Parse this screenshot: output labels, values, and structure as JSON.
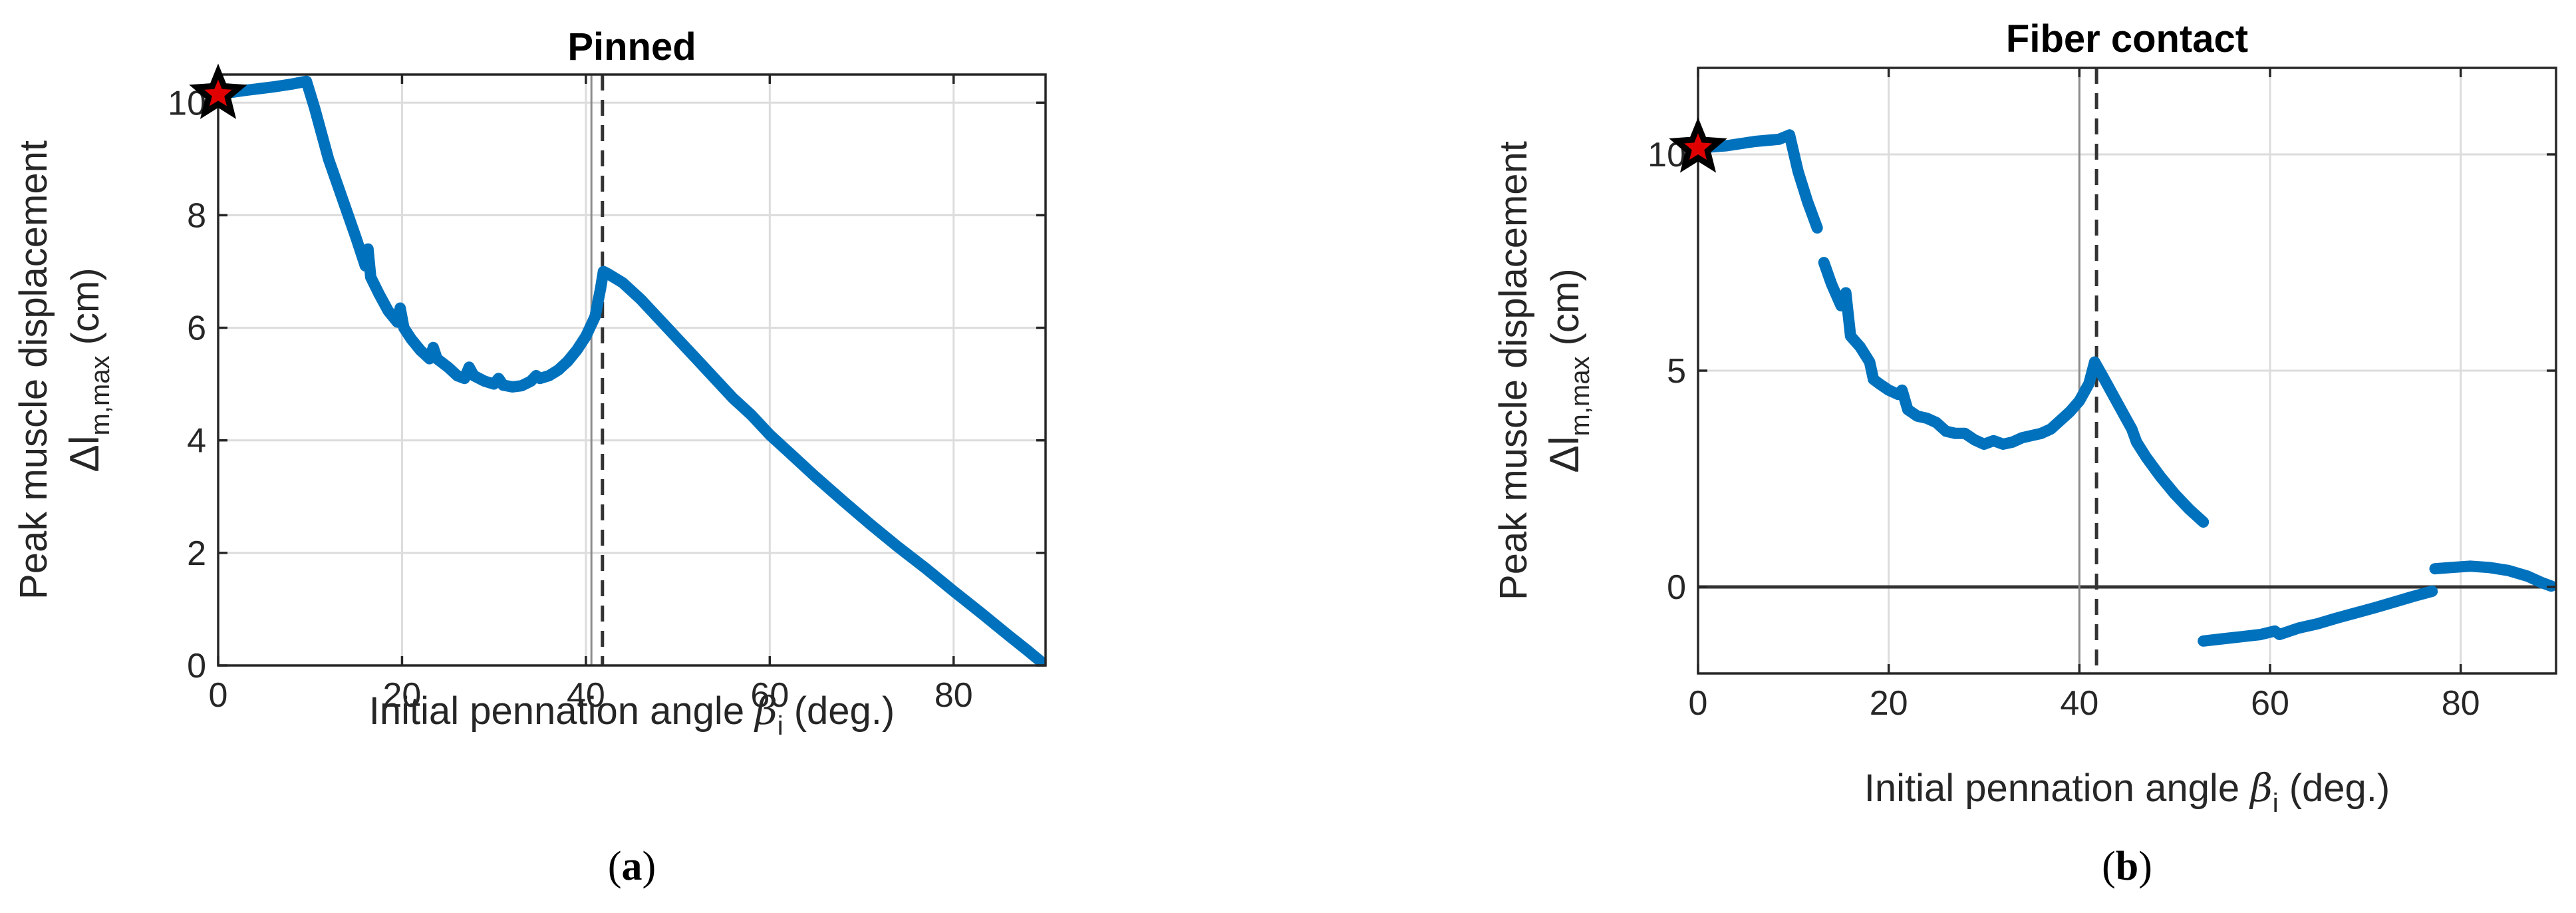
{
  "chart_data": [
    {
      "type": "line",
      "title": "Pinned",
      "panel_label": "(a)",
      "xlabel": "Initial pennation angle",
      "xlabel_symbol": "β",
      "xlabel_subscript": "i",
      "xlabel_unit": "(deg.)",
      "ylabel_line1": "Peak muscle displacement",
      "ylabel_symbol": "Δl",
      "ylabel_subscript": "m,max",
      "ylabel_unit": "(cm)",
      "xlim": [
        0,
        90
      ],
      "ylim": [
        0,
        10.5
      ],
      "xticks": [
        0,
        20,
        40,
        60,
        80
      ],
      "yticks": [
        0,
        2,
        4,
        6,
        8,
        10
      ],
      "grid": true,
      "reference_lines": [
        {
          "x": 40.6,
          "style": "solid"
        },
        {
          "x": 41.8,
          "style": "dashed"
        }
      ],
      "marker": {
        "x": 0,
        "y": 10.15,
        "shape": "star",
        "color": "#E00000"
      },
      "series_color": "#0072BD",
      "segments": [
        [
          [
            0,
            10.15
          ],
          [
            3,
            10.22
          ],
          [
            6,
            10.28
          ],
          [
            8,
            10.33
          ],
          [
            9.6,
            10.38
          ],
          [
            10.5,
            9.9
          ],
          [
            12,
            9.0
          ],
          [
            13.5,
            8.3
          ],
          [
            15,
            7.6
          ],
          [
            16,
            7.1
          ],
          [
            16.3,
            7.4
          ],
          [
            16.6,
            6.9
          ],
          [
            17.5,
            6.6
          ],
          [
            18.5,
            6.3
          ],
          [
            19.5,
            6.1
          ],
          [
            19.8,
            6.35
          ],
          [
            20.2,
            6.0
          ],
          [
            21,
            5.8
          ],
          [
            22,
            5.6
          ],
          [
            23,
            5.45
          ],
          [
            23.4,
            5.65
          ],
          [
            23.8,
            5.45
          ],
          [
            25,
            5.3
          ],
          [
            26,
            5.15
          ],
          [
            26.8,
            5.1
          ],
          [
            27.3,
            5.3
          ],
          [
            27.8,
            5.15
          ],
          [
            29,
            5.05
          ],
          [
            30,
            5.0
          ],
          [
            30.5,
            5.1
          ],
          [
            31,
            4.98
          ],
          [
            32,
            4.95
          ],
          [
            33,
            4.97
          ],
          [
            34,
            5.05
          ],
          [
            34.6,
            5.15
          ],
          [
            35,
            5.1
          ],
          [
            36,
            5.15
          ],
          [
            37,
            5.25
          ],
          [
            38,
            5.4
          ],
          [
            39,
            5.6
          ],
          [
            40,
            5.85
          ],
          [
            41,
            6.2
          ],
          [
            41.6,
            6.7
          ],
          [
            41.9,
            7.0
          ],
          [
            42.5,
            6.95
          ],
          [
            44,
            6.8
          ],
          [
            46,
            6.5
          ],
          [
            48,
            6.15
          ],
          [
            50,
            5.8
          ],
          [
            52,
            5.45
          ],
          [
            54,
            5.1
          ],
          [
            56,
            4.75
          ],
          [
            58,
            4.45
          ],
          [
            60,
            4.1
          ],
          [
            62,
            3.8
          ],
          [
            65,
            3.35
          ],
          [
            68,
            2.92
          ],
          [
            71,
            2.5
          ],
          [
            74,
            2.1
          ],
          [
            77,
            1.72
          ],
          [
            80,
            1.32
          ],
          [
            83,
            0.93
          ],
          [
            86,
            0.53
          ],
          [
            88,
            0.27
          ],
          [
            90,
            0.0
          ]
        ]
      ]
    },
    {
      "type": "line",
      "title": "Fiber contact",
      "panel_label": "(b)",
      "xlabel": "Initial pennation angle",
      "xlabel_symbol": "β",
      "xlabel_subscript": "i",
      "xlabel_unit": "(deg.)",
      "ylabel_line1": "Peak muscle displacement",
      "ylabel_symbol": "Δl",
      "ylabel_subscript": "m,max",
      "ylabel_unit": "(cm)",
      "xlim": [
        0,
        90
      ],
      "ylim": [
        -2,
        12
      ],
      "xticks": [
        0,
        20,
        40,
        60,
        80
      ],
      "yticks": [
        0,
        5,
        10
      ],
      "grid": true,
      "reference_lines": [
        {
          "x": 40.0,
          "style": "solid"
        },
        {
          "x": 41.8,
          "style": "dashed"
        }
      ],
      "zero_line": true,
      "marker": {
        "x": 0,
        "y": 10.15,
        "shape": "star",
        "color": "#E00000"
      },
      "series_color": "#0072BD",
      "segments": [
        [
          [
            0,
            10.15
          ],
          [
            3,
            10.2
          ],
          [
            6,
            10.3
          ],
          [
            8.5,
            10.35
          ],
          [
            9.6,
            10.45
          ],
          [
            10.5,
            9.6
          ],
          [
            11.5,
            8.9
          ],
          [
            12.5,
            8.3
          ]
        ],
        [
          [
            13.2,
            7.5
          ],
          [
            14,
            7.0
          ],
          [
            15,
            6.5
          ],
          [
            15.5,
            6.8
          ],
          [
            16,
            5.8
          ],
          [
            17,
            5.55
          ],
          [
            18,
            5.2
          ],
          [
            18.4,
            4.8
          ],
          [
            19,
            4.7
          ],
          [
            20,
            4.55
          ],
          [
            21,
            4.45
          ],
          [
            21.4,
            4.55
          ],
          [
            22,
            4.1
          ],
          [
            23,
            3.95
          ],
          [
            24,
            3.9
          ],
          [
            25,
            3.8
          ],
          [
            26,
            3.6
          ],
          [
            27,
            3.55
          ],
          [
            28,
            3.55
          ],
          [
            29,
            3.4
          ],
          [
            30,
            3.3
          ],
          [
            31,
            3.38
          ],
          [
            32,
            3.3
          ],
          [
            33,
            3.35
          ],
          [
            34,
            3.45
          ],
          [
            35,
            3.5
          ],
          [
            36,
            3.55
          ],
          [
            37,
            3.65
          ],
          [
            38,
            3.85
          ],
          [
            39,
            4.05
          ],
          [
            40,
            4.3
          ],
          [
            41,
            4.7
          ],
          [
            41.6,
            5.2
          ],
          [
            42.5,
            4.85
          ],
          [
            43.5,
            4.45
          ],
          [
            44.5,
            4.05
          ],
          [
            45.5,
            3.65
          ],
          [
            46,
            3.35
          ],
          [
            47,
            3.0
          ],
          [
            48.5,
            2.55
          ],
          [
            50,
            2.15
          ],
          [
            51.5,
            1.8
          ],
          [
            53,
            1.5
          ]
        ],
        [
          [
            53,
            -1.25
          ],
          [
            55,
            -1.2
          ],
          [
            57,
            -1.15
          ],
          [
            59,
            -1.1
          ],
          [
            60.5,
            -1.02
          ],
          [
            61,
            -1.1
          ],
          [
            63,
            -0.95
          ],
          [
            65,
            -0.85
          ],
          [
            67,
            -0.72
          ],
          [
            69,
            -0.6
          ],
          [
            71,
            -0.48
          ],
          [
            73,
            -0.35
          ],
          [
            75,
            -0.22
          ],
          [
            77,
            -0.1
          ]
        ],
        [
          [
            77.3,
            0.42
          ],
          [
            79,
            0.45
          ],
          [
            81,
            0.48
          ],
          [
            83,
            0.45
          ],
          [
            85,
            0.38
          ],
          [
            87,
            0.25
          ],
          [
            88.5,
            0.1
          ],
          [
            89.5,
            0.02
          ]
        ]
      ]
    }
  ]
}
